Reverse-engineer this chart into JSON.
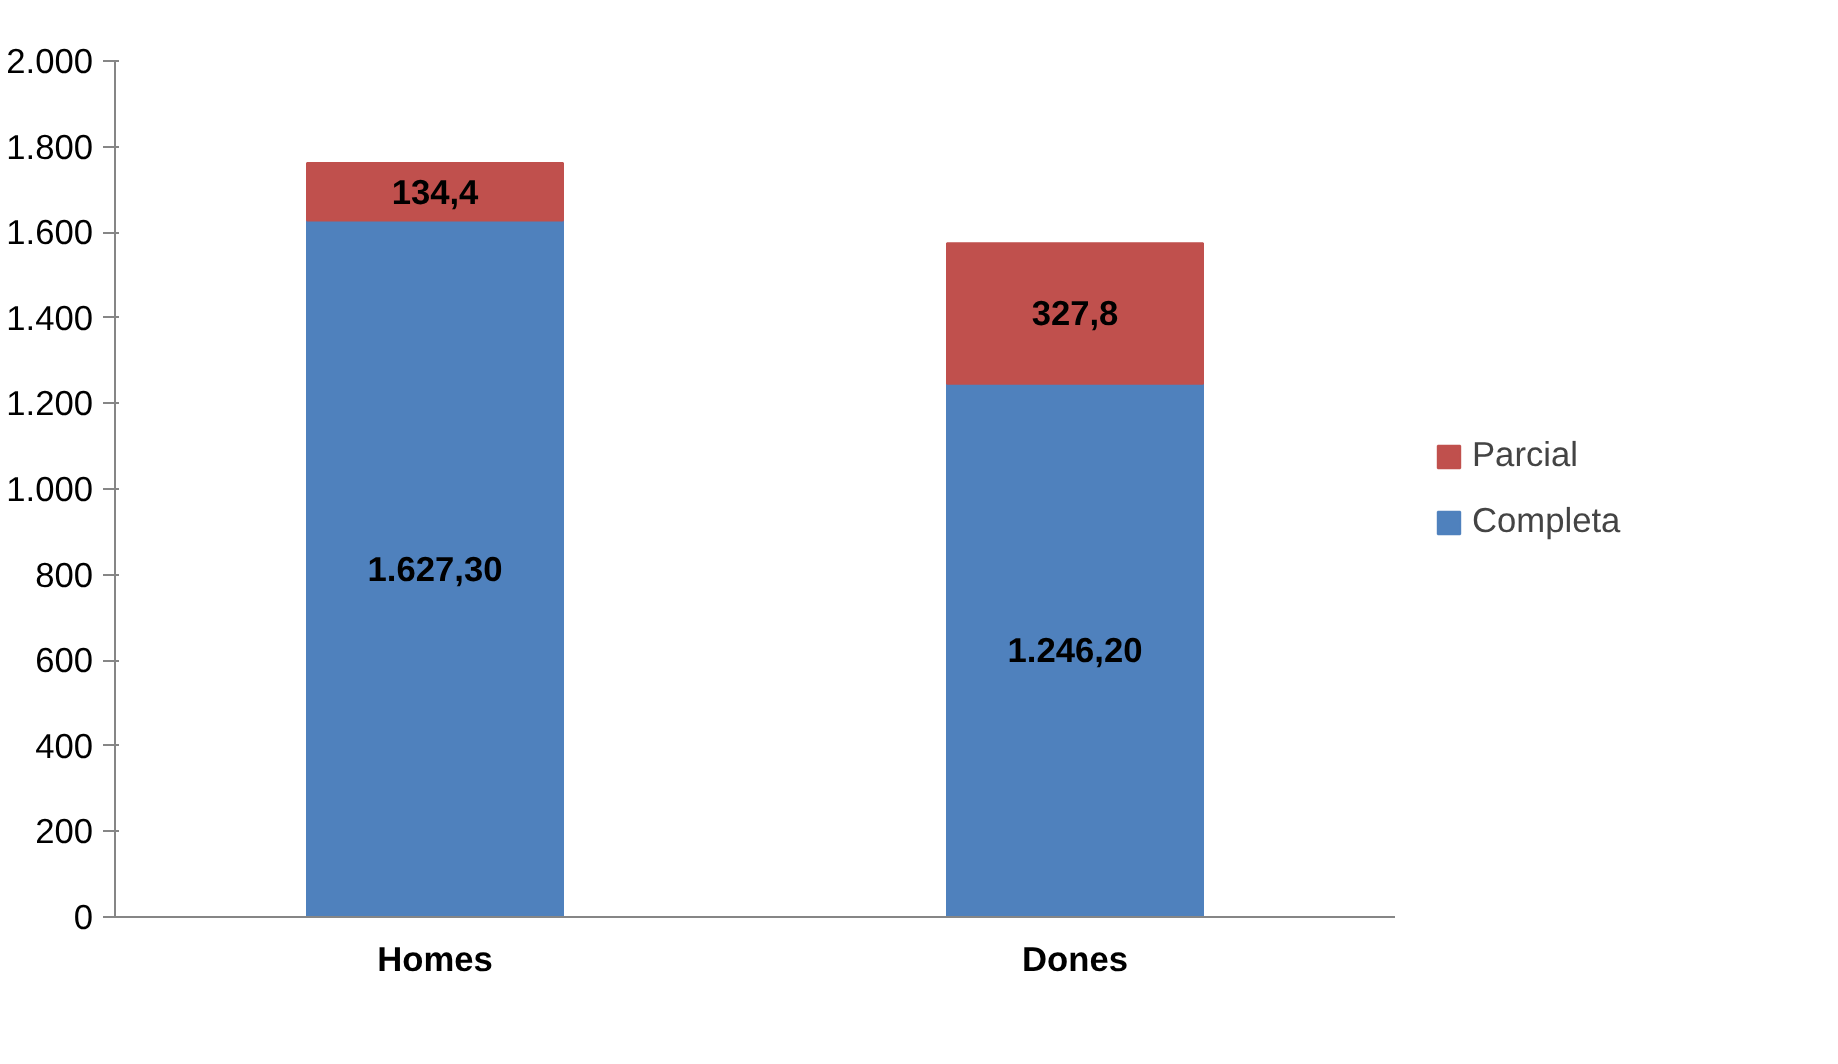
{
  "chart_data": {
    "type": "bar",
    "stacked": true,
    "categories": [
      "Homes",
      "Dones"
    ],
    "series": [
      {
        "name": "Completa",
        "color": "#4f81bd",
        "values": [
          1627.3,
          1246.2
        ],
        "value_labels": [
          "1.627,30",
          "1.246,20"
        ]
      },
      {
        "name": "Parcial",
        "color": "#c0504d",
        "values": [
          134.4,
          327.8
        ],
        "value_labels": [
          "134,4",
          "327,8"
        ]
      }
    ],
    "ylim": [
      0,
      2000
    ],
    "yticks": [
      0,
      200,
      400,
      600,
      800,
      {
        "value": 1000,
        "label": "1.000"
      },
      {
        "value": 1200,
        "label": "1.200"
      },
      {
        "value": 1400,
        "label": "1.400"
      },
      {
        "value": 1600,
        "label": "1.600"
      },
      {
        "value": 1800,
        "label": "1.800"
      },
      {
        "value": 2000,
        "label": "2.000"
      }
    ],
    "grid": false,
    "legend": "right"
  }
}
